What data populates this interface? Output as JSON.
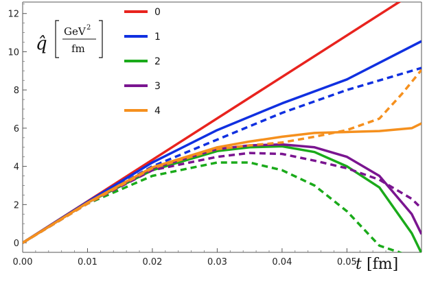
{
  "chart_data": {
    "type": "line",
    "ylabel": {
      "symbol": "q̂",
      "unit_numerator": "GeV",
      "unit_exponent": "2",
      "unit_denominator": "fm"
    },
    "xlabel": {
      "symbol": "t",
      "unit": "[fm]"
    },
    "xlim": [
      0,
      0.0615
    ],
    "ylim": [
      -0.5,
      12.6
    ],
    "xticks": [
      "0.00",
      "0.01",
      "0.02",
      "0.03",
      "0.04",
      "0.05"
    ],
    "xtick_values": [
      0,
      0.01,
      0.02,
      0.03,
      0.04,
      0.05
    ],
    "yticks": [
      "0",
      "2",
      "4",
      "6",
      "8",
      "10",
      "12"
    ],
    "ytick_values": [
      0,
      2,
      4,
      6,
      8,
      10,
      12
    ],
    "legend_position": "top-center",
    "grid": false,
    "series": [
      {
        "name": "0",
        "color": "#e8231e",
        "style": "solid",
        "x": [
          0,
          0.0585
        ],
        "y": [
          0,
          12.7
        ]
      },
      {
        "name": "1",
        "color": "#1030e0",
        "style": "solid",
        "x": [
          0,
          0.01,
          0.02,
          0.03,
          0.04,
          0.05,
          0.0615
        ],
        "y": [
          0,
          2.15,
          4.2,
          5.9,
          7.3,
          8.55,
          10.55
        ]
      },
      {
        "name": "1",
        "color": "#1030e0",
        "style": "dashed",
        "x": [
          0,
          0.01,
          0.02,
          0.03,
          0.04,
          0.05,
          0.0615
        ],
        "y": [
          0,
          2.1,
          4.0,
          5.4,
          6.8,
          8.0,
          9.15
        ]
      },
      {
        "name": "2",
        "color": "#1aaa1a",
        "style": "solid",
        "x": [
          0,
          0.01,
          0.02,
          0.03,
          0.035,
          0.04,
          0.045,
          0.05,
          0.055,
          0.06,
          0.0615
        ],
        "y": [
          0,
          2.1,
          3.8,
          4.8,
          5.0,
          5.05,
          4.75,
          4.0,
          2.9,
          0.5,
          -0.55
        ]
      },
      {
        "name": "2",
        "color": "#1aaa1a",
        "style": "dashed",
        "x": [
          0,
          0.01,
          0.02,
          0.03,
          0.035,
          0.04,
          0.045,
          0.05,
          0.055,
          0.0585
        ],
        "y": [
          0,
          2.05,
          3.5,
          4.2,
          4.2,
          3.8,
          3.0,
          1.65,
          -0.15,
          -0.55
        ]
      },
      {
        "name": "3",
        "color": "#7a1590",
        "style": "solid",
        "x": [
          0,
          0.01,
          0.02,
          0.03,
          0.035,
          0.04,
          0.045,
          0.05,
          0.055,
          0.06,
          0.0615
        ],
        "y": [
          0,
          2.1,
          3.9,
          4.9,
          5.1,
          5.15,
          5.0,
          4.5,
          3.5,
          1.5,
          0.45
        ]
      },
      {
        "name": "3",
        "color": "#7a1590",
        "style": "dashed",
        "x": [
          0,
          0.01,
          0.02,
          0.03,
          0.035,
          0.04,
          0.045,
          0.05,
          0.055,
          0.06,
          0.0615
        ],
        "y": [
          0,
          2.05,
          3.8,
          4.5,
          4.7,
          4.65,
          4.3,
          3.9,
          3.3,
          2.3,
          1.8
        ]
      },
      {
        "name": "4",
        "color": "#f5901e",
        "style": "solid",
        "x": [
          0,
          0.01,
          0.02,
          0.03,
          0.035,
          0.04,
          0.045,
          0.05,
          0.055,
          0.06,
          0.0615
        ],
        "y": [
          0,
          2.1,
          3.95,
          5.0,
          5.3,
          5.55,
          5.75,
          5.8,
          5.85,
          6.0,
          6.25
        ]
      },
      {
        "name": "4",
        "color": "#f5901e",
        "style": "dashed",
        "x": [
          0,
          0.01,
          0.02,
          0.03,
          0.035,
          0.04,
          0.045,
          0.05,
          0.055,
          0.0585,
          0.0615
        ],
        "y": [
          0,
          2.05,
          3.9,
          4.9,
          5.1,
          5.25,
          5.55,
          5.9,
          6.5,
          7.8,
          9.05
        ]
      }
    ],
    "legend": [
      {
        "label": "0",
        "color": "#e8231e"
      },
      {
        "label": "1",
        "color": "#1030e0"
      },
      {
        "label": "2",
        "color": "#1aaa1a"
      },
      {
        "label": "3",
        "color": "#7a1590"
      },
      {
        "label": "4",
        "color": "#f5901e"
      }
    ]
  }
}
